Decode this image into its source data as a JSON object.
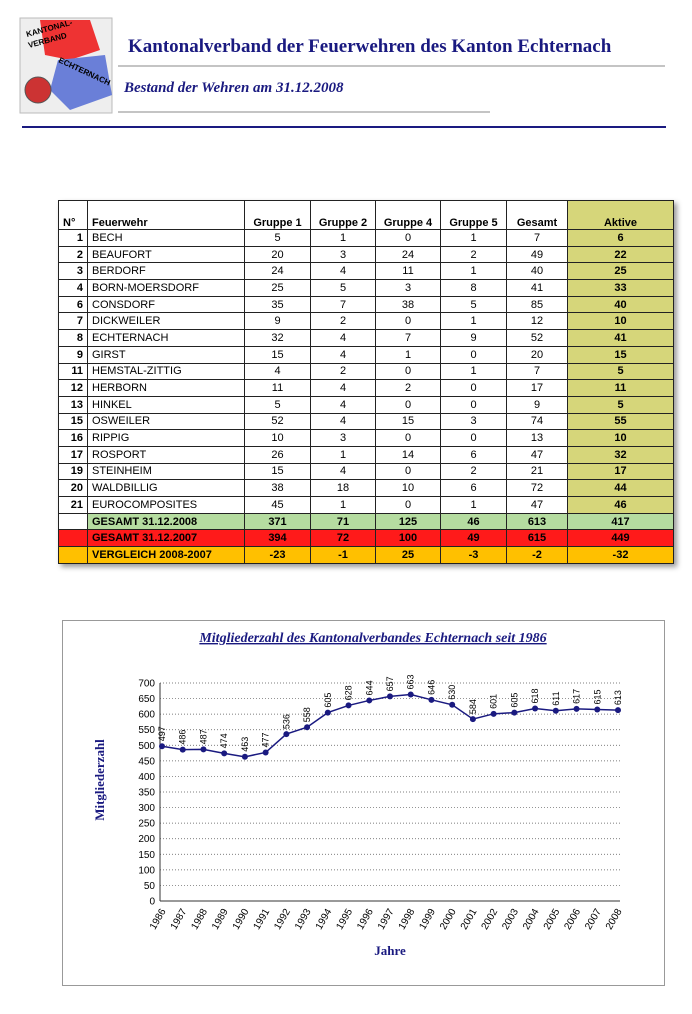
{
  "header": {
    "title": "Kantonalverband  der Feuerwehren des Kanton Echternach",
    "subtitle": "Bestand der Wehren am 31.12.2008",
    "logo": [
      "KANTONAL-",
      "VERBAND",
      "ECHTERNACH"
    ]
  },
  "table": {
    "columns": [
      "N°",
      "Feuerwehr",
      "Gruppe 1",
      "Gruppe 2",
      "Gruppe 4",
      "Gruppe 5",
      "Gesamt",
      "Aktive"
    ],
    "rows": [
      [
        1,
        "BECH",
        5,
        1,
        0,
        1,
        7,
        6
      ],
      [
        2,
        "BEAUFORT",
        20,
        3,
        24,
        2,
        49,
        22
      ],
      [
        3,
        "BERDORF",
        24,
        4,
        11,
        1,
        40,
        25
      ],
      [
        4,
        "BORN-MOERSDORF",
        25,
        5,
        3,
        8,
        41,
        33
      ],
      [
        6,
        "CONSDORF",
        35,
        7,
        38,
        5,
        85,
        40
      ],
      [
        7,
        "DICKWEILER",
        9,
        2,
        0,
        1,
        12,
        10
      ],
      [
        8,
        "ECHTERNACH",
        32,
        4,
        7,
        9,
        52,
        41
      ],
      [
        9,
        "GIRST",
        15,
        4,
        1,
        0,
        20,
        15
      ],
      [
        11,
        "HEMSTAL-ZITTIG",
        4,
        2,
        0,
        1,
        7,
        5
      ],
      [
        12,
        "HERBORN",
        11,
        4,
        2,
        0,
        17,
        11
      ],
      [
        13,
        "HINKEL",
        5,
        4,
        0,
        0,
        9,
        5
      ],
      [
        15,
        "OSWEILER",
        52,
        4,
        15,
        3,
        74,
        55
      ],
      [
        16,
        "RIPPIG",
        10,
        3,
        0,
        0,
        13,
        10
      ],
      [
        17,
        "ROSPORT",
        26,
        1,
        14,
        6,
        47,
        32
      ],
      [
        19,
        "STEINHEIM",
        15,
        4,
        0,
        2,
        21,
        17
      ],
      [
        20,
        "WALDBILLIG",
        38,
        18,
        10,
        6,
        72,
        44
      ],
      [
        21,
        "EUROCOMPOSITES",
        45,
        1,
        0,
        1,
        47,
        46
      ]
    ],
    "totals": [
      [
        "GESAMT 31.12.2008",
        371,
        71,
        125,
        46,
        613,
        417
      ],
      [
        "GESAMT 31.12.2007",
        394,
        72,
        100,
        49,
        615,
        449
      ],
      [
        "VERGLEICH 2008-2007",
        -23,
        -1,
        25,
        -3,
        -2,
        -32
      ]
    ]
  },
  "chart_data": {
    "type": "line",
    "title": "Mitgliederzahl des Kantonalverbandes Echternach seit 1986",
    "x_label": "Jahre",
    "y_label": "Mitgliederzahl",
    "categories": [
      "1986",
      "1987",
      "1988",
      "1989",
      "1990",
      "1991",
      "1992",
      "1993",
      "1994",
      "1995",
      "1996",
      "1997",
      "1998",
      "1999",
      "2000",
      "2001",
      "2002",
      "2003",
      "2004",
      "2005",
      "2006",
      "2007",
      "2008"
    ],
    "series": [
      {
        "name": "Mitgliederzahl",
        "color": "#1a1a80",
        "values": [
          497,
          486,
          487,
          474,
          463,
          477,
          536,
          558,
          605,
          628,
          644,
          657,
          663,
          646,
          630,
          584,
          601,
          605,
          618,
          611,
          617,
          615,
          613
        ]
      }
    ],
    "ylim": [
      0,
      700
    ],
    "yticks": [
      0,
      50,
      100,
      150,
      200,
      250,
      300,
      350,
      400,
      450,
      500,
      550,
      600,
      650,
      700
    ],
    "grid": true
  }
}
